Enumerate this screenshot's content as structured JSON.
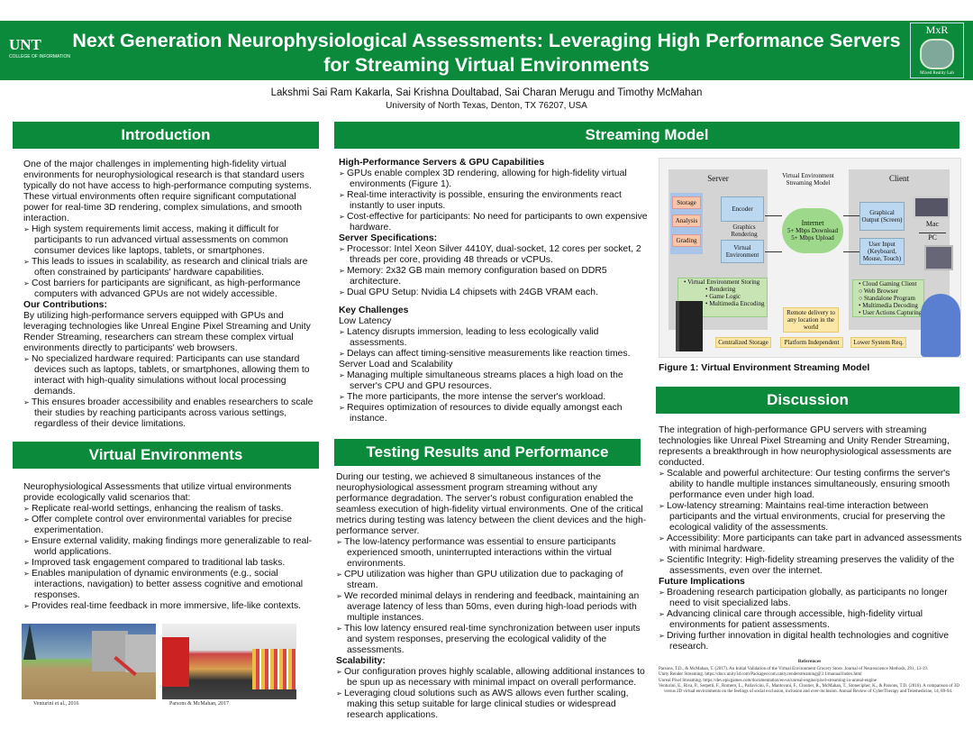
{
  "header": {
    "title": "Next Generation Neurophysiological Assessments: Leveraging High Performance Servers for Streaming Virtual Environments",
    "logo_left": "UNT",
    "logo_left_sub": "COLLEGE OF INFORMATION",
    "logo_right": "MxR",
    "logo_right_sub": "Mixed Reality Lab",
    "authors": "Lakshmi Sai Ram Kakarla, Sai Krishna Doultabad, Sai Charan Merugu and Timothy McMahan",
    "affiliation": "University of North Texas, Denton, TX 76207, USA",
    "color": "#0a8a3a"
  },
  "introduction": {
    "heading": "Introduction",
    "para": "One of the major challenges in implementing high-fidelity virtual environments for neurophysiological research is that standard users typically do not have access to high-performance computing systems. These virtual environments often require significant computational power for real-time 3D rendering, complex simulations, and smooth interaction.",
    "bullets": [
      "High system requirements limit access, making it difficult for participants to run advanced virtual assessments on common consumer devices like laptops, tablets, or smartphones.",
      "This leads to issues in scalability, as research and clinical trials are often constrained by participants' hardware capabilities.",
      "Cost barriers for participants are significant, as high-performance computers with advanced GPUs are not widely accessible."
    ],
    "contrib_heading": "Our Contributions:",
    "contrib_para": "By utilizing high-performance servers equipped with GPUs and leveraging technologies like Unreal Engine Pixel Streaming and Unity Render Streaming, researchers can stream these complex virtual environments directly to participants' web browsers.",
    "contrib_bullets": [
      "No specialized hardware required: Participants can use standard devices such as laptops, tablets, or smartphones, allowing them to interact with high-quality simulations without local processing demands.",
      "This ensures broader accessibility and enables researchers to scale their studies by reaching participants across various settings, regardless of their device limitations."
    ]
  },
  "virtual_env": {
    "heading": "Virtual Environments",
    "para": "Neurophysiological Assessments that utilize virtual environments provide ecologically valid scenarios that:",
    "bullets": [
      "Replicate real-world settings, enhancing the realism of tasks.",
      "Offer complete control over environmental variables for precise experimentation.",
      "Ensure external validity, making findings more generalizable to real-world applications.",
      "Improved task engagement compared to traditional lab tasks.",
      "Enables manipulation of dynamic environments (e.g., social interactions, navigation) to better assess cognitive and emotional responses.",
      "Provides real-time feedback in more immersive, life-like contexts."
    ],
    "credit1": "Venturini et al., 2016",
    "credit2": "Parsons & McMahan, 2017"
  },
  "streaming": {
    "heading": "Streaming Model",
    "h1": "High-Performance Servers & GPU Capabilities",
    "b1": [
      "GPUs enable complex 3D rendering, allowing for high-fidelity virtual environments (Figure 1).",
      "Real-time interactivity is possible, ensuring the environments react instantly to user inputs.",
      "Cost-effective for participants: No need for participants to own expensive hardware."
    ],
    "h2": "Server Specifications:",
    "b2": [
      "Processor: Intel Xeon Silver 4410Y, dual-socket, 12 cores per socket, 2 threads per core, providing 48 threads or vCPUs.",
      "Memory: 2x32 GB main memory configuration based on DDR5 architecture.",
      "Dual GPU Setup: Nvidia L4 chipsets with 24GB VRAM each."
    ],
    "h3": "Key Challenges",
    "s1": "Low Latency",
    "b3": [
      "Latency disrupts immersion, leading to less ecologically valid assessments.",
      "Delays can affect timing-sensitive measurements like reaction times."
    ],
    "s2": "Server Load and Scalability",
    "b4": [
      "Managing multiple simultaneous streams places a high load on the server's CPU and GPU resources.",
      "The more participants, the more intense the server's workload.",
      "Requires optimization of resources to divide equally amongst each instance."
    ]
  },
  "figure": {
    "caption": "Figure 1: Virtual Environment Streaming Model",
    "title": "Virtual Environment Streaming Model",
    "server": "Server",
    "client": "Client",
    "storage": "Storage",
    "analysis": "Analysis",
    "grading": "Grading",
    "encoder": "Encoder",
    "graphics": "Graphics Rendering",
    "venv": "Virtual Environment",
    "internet": "Internet",
    "down": "5+ Mbps Download",
    "up": "5+ Mbps Upload",
    "output": "Graphical Output (Screen)",
    "input": "User Input (Keyboard, Mouse, Touch)",
    "mac": "Mac",
    "pc": "PC",
    "server_list": [
      "• Virtual Environment Storing",
      "• Rendering",
      "• Game Logic",
      "• Multimedia Encoding"
    ],
    "client_list": [
      "• Cloud Gaming Client",
      "○ Web Browser",
      "○ Standalone Program",
      "• Multimedia Decoding",
      "• User Actions Capturing"
    ],
    "remote": "Remote delivery to any location in the world",
    "f1": "Centralized Storage",
    "f2": "Platform Independent",
    "f3": "Lower System Req."
  },
  "testing": {
    "heading": "Testing Results and Performance",
    "para": "During our testing, we achieved 8 simultaneous instances of the neurophysiological assessment program streaming without any performance degradation. The server's robust configuration enabled the seamless execution of high-fidelity virtual environments. One of the critical metrics during testing was latency between the client devices and the high-performance server.",
    "bullets": [
      "The low-latency performance was essential to ensure participants experienced smooth, uninterrupted interactions within the virtual environments.",
      "CPU utilization was higher than GPU utilization due to packaging of stream.",
      "We recorded minimal delays in rendering and feedback, maintaining an average latency of less than 50ms, even during high-load periods with multiple instances.",
      "This low latency ensured real-time synchronization between user inputs and system responses, preserving the ecological validity of the assessments."
    ],
    "h2": "Scalability:",
    "b2": [
      "Our configuration proves highly scalable, allowing additional instances to be spun up as necessary with minimal impact on overall performance.",
      "Leveraging cloud solutions such as AWS allows even further scaling, making this setup suitable for large clinical studies or widespread research applications."
    ]
  },
  "discussion": {
    "heading": "Discussion",
    "para": "The integration of high-performance GPU servers with streaming technologies like Unreal Pixel Streaming and Unity Render Streaming, represents a breakthrough in how neurophysiological assessments are conducted.",
    "bullets": [
      "Scalable and powerful architecture: Our testing confirms the server's ability to handle multiple instances simultaneously, ensuring smooth performance even under high load.",
      "Low-latency streaming: Maintains real-time interaction between participants and the virtual environments, crucial for preserving the ecological validity of the assessments.",
      "Accessibility: More participants can take part in advanced assessments with minimal hardware.",
      "Scientific Integrity: High-fidelity streaming preserves the validity of the assessments, even over the internet."
    ],
    "h2": "Future Implications",
    "b2": [
      "Broadening research participation globally, as participants no longer need to visit specialized labs.",
      "Advancing clinical care through accessible, high-fidelity virtual environments for patient assessments.",
      "Driving further innovation in digital health technologies and cognitive research."
    ]
  },
  "references": {
    "heading": "References",
    "items": [
      "Parsons, T.D., & McMahan, T. (2017). An Initial Validation of the Virtual Environment Grocery Store. Journal of Neuroscience Methods, 291, 13-19.",
      "Unity Render Streaming. https://docs.unity3d.com/Packages/com.unity.renderstreaming@3.1/manual/index.html",
      "Unreal Pixel Streaming. https://dev.epicgames.com/documentation/en-us/unreal-engine/pixel-streaming-in-unreal-engine",
      "Venturini, E., Riva, P., Serpetti, F., Romero, L., Pallavicini, F., Mantovani, F., Cloutier, R., McMahan, T., Stonecipher, K., & Parsons, T.D. (2016). A comparison of 3D versus 2D virtual environments on the feelings of social exclusion, inclusion and over-inclusion. Annual Review of CyberTherapy and Telemedicine, 14, 89-94."
    ]
  }
}
